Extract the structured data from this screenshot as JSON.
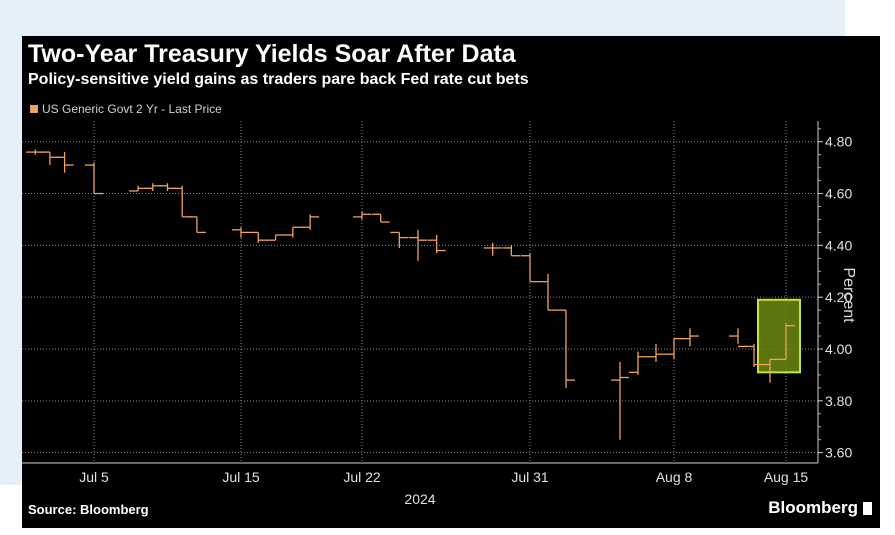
{
  "header": {
    "title": "Two-Year Treasury Yields Soar After Data",
    "subtitle": "Policy-sensitive yield gains as traders pare back Fed rate cut bets"
  },
  "footer": {
    "source": "Source: Bloomberg",
    "brand": "Bloomberg"
  },
  "colors": {
    "background": "#000000",
    "series": "#f0a25a",
    "highlight_fill": "#6c8a12",
    "highlight_border": "#c4e43a",
    "grid": "#888888"
  },
  "chart_data": {
    "type": "line",
    "style": "open-high-low-close bars",
    "legend": "US Generic Govt 2 Yr - Last Price",
    "ylabel": "Percent",
    "xlabel": "2024",
    "ylim": [
      3.56,
      4.88
    ],
    "y_ticks": [
      "4.80",
      "4.60",
      "4.40",
      "4.20",
      "4.00",
      "3.80",
      "3.60"
    ],
    "x_ticks": [
      {
        "label": "Jul 5",
        "date": "2024-07-05"
      },
      {
        "label": "Jul 15",
        "date": "2024-07-15"
      },
      {
        "label": "Jul 22",
        "date": "2024-07-22"
      },
      {
        "label": "Jul 31",
        "date": "2024-07-31"
      },
      {
        "label": "Aug 8",
        "date": "2024-08-08"
      },
      {
        "label": "Aug 15",
        "date": "2024-08-15"
      }
    ],
    "grid": true,
    "highlight": {
      "date": "2024-08-15",
      "y_range": [
        3.91,
        4.19
      ]
    },
    "series": [
      {
        "name": "US Generic Govt 2 Yr - Last Price",
        "points": [
          {
            "date": "2024-07-01",
            "open": 4.76,
            "high": 4.77,
            "low": 4.75,
            "close": 4.76
          },
          {
            "date": "2024-07-02",
            "open": 4.76,
            "high": 4.76,
            "low": 4.71,
            "close": 4.74
          },
          {
            "date": "2024-07-03",
            "open": 4.74,
            "high": 4.76,
            "low": 4.68,
            "close": 4.71
          },
          {
            "date": "2024-07-05",
            "open": 4.71,
            "high": 4.72,
            "low": 4.6,
            "close": 4.6
          },
          {
            "date": "2024-07-08",
            "open": 4.61,
            "high": 4.63,
            "low": 4.61,
            "close": 4.62
          },
          {
            "date": "2024-07-09",
            "open": 4.62,
            "high": 4.64,
            "low": 4.61,
            "close": 4.63
          },
          {
            "date": "2024-07-10",
            "open": 4.63,
            "high": 4.64,
            "low": 4.61,
            "close": 4.62
          },
          {
            "date": "2024-07-11",
            "open": 4.62,
            "high": 4.63,
            "low": 4.51,
            "close": 4.51
          },
          {
            "date": "2024-07-12",
            "open": 4.51,
            "high": 4.51,
            "low": 4.45,
            "close": 4.45
          },
          {
            "date": "2024-07-15",
            "open": 4.46,
            "high": 4.47,
            "low": 4.43,
            "close": 4.45
          },
          {
            "date": "2024-07-16",
            "open": 4.45,
            "high": 4.45,
            "low": 4.41,
            "close": 4.42
          },
          {
            "date": "2024-07-17",
            "open": 4.42,
            "high": 4.44,
            "low": 4.42,
            "close": 4.44
          },
          {
            "date": "2024-07-18",
            "open": 4.44,
            "high": 4.47,
            "low": 4.43,
            "close": 4.47
          },
          {
            "date": "2024-07-19",
            "open": 4.47,
            "high": 4.52,
            "low": 4.46,
            "close": 4.51
          },
          {
            "date": "2024-07-22",
            "open": 4.51,
            "high": 4.53,
            "low": 4.5,
            "close": 4.52
          },
          {
            "date": "2024-07-23",
            "open": 4.52,
            "high": 4.52,
            "low": 4.49,
            "close": 4.49
          },
          {
            "date": "2024-07-24",
            "open": 4.45,
            "high": 4.45,
            "low": 4.39,
            "close": 4.43
          },
          {
            "date": "2024-07-25",
            "open": 4.43,
            "high": 4.46,
            "low": 4.34,
            "close": 4.42
          },
          {
            "date": "2024-07-26",
            "open": 4.42,
            "high": 4.44,
            "low": 4.37,
            "close": 4.38
          },
          {
            "date": "2024-07-29",
            "open": 4.39,
            "high": 4.41,
            "low": 4.36,
            "close": 4.39
          },
          {
            "date": "2024-07-30",
            "open": 4.39,
            "high": 4.4,
            "low": 4.36,
            "close": 4.36
          },
          {
            "date": "2024-07-31",
            "open": 4.36,
            "high": 4.37,
            "low": 4.26,
            "close": 4.26
          },
          {
            "date": "2024-08-01",
            "open": 4.26,
            "high": 4.29,
            "low": 4.15,
            "close": 4.15
          },
          {
            "date": "2024-08-02",
            "open": 4.15,
            "high": 4.15,
            "low": 3.85,
            "close": 3.88
          },
          {
            "date": "2024-08-05",
            "open": 3.88,
            "high": 3.95,
            "low": 3.65,
            "close": 3.89
          },
          {
            "date": "2024-08-06",
            "open": 3.91,
            "high": 3.99,
            "low": 3.9,
            "close": 3.97
          },
          {
            "date": "2024-08-07",
            "open": 3.97,
            "high": 4.02,
            "low": 3.95,
            "close": 3.98
          },
          {
            "date": "2024-08-08",
            "open": 3.98,
            "high": 4.04,
            "low": 3.96,
            "close": 4.04
          },
          {
            "date": "2024-08-09",
            "open": 4.04,
            "high": 4.08,
            "low": 4.01,
            "close": 4.05
          },
          {
            "date": "2024-08-12",
            "open": 4.05,
            "high": 4.08,
            "low": 4.02,
            "close": 4.01
          },
          {
            "date": "2024-08-13",
            "open": 4.01,
            "high": 4.02,
            "low": 3.93,
            "close": 3.94
          },
          {
            "date": "2024-08-14",
            "open": 3.94,
            "high": 3.96,
            "low": 3.87,
            "close": 3.96
          },
          {
            "date": "2024-08-15",
            "open": 3.96,
            "high": 4.1,
            "low": 3.96,
            "close": 4.09
          }
        ]
      }
    ]
  }
}
